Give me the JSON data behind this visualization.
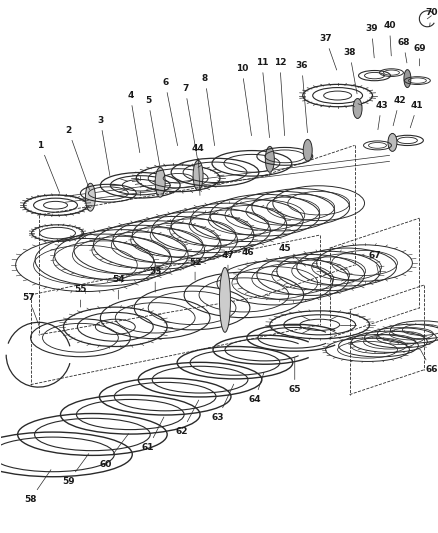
{
  "bg_color": "#ffffff",
  "line_color": "#2a2a2a",
  "label_color": "#1a1a1a",
  "fig_w": 4.39,
  "fig_h": 5.33,
  "dpi": 100
}
